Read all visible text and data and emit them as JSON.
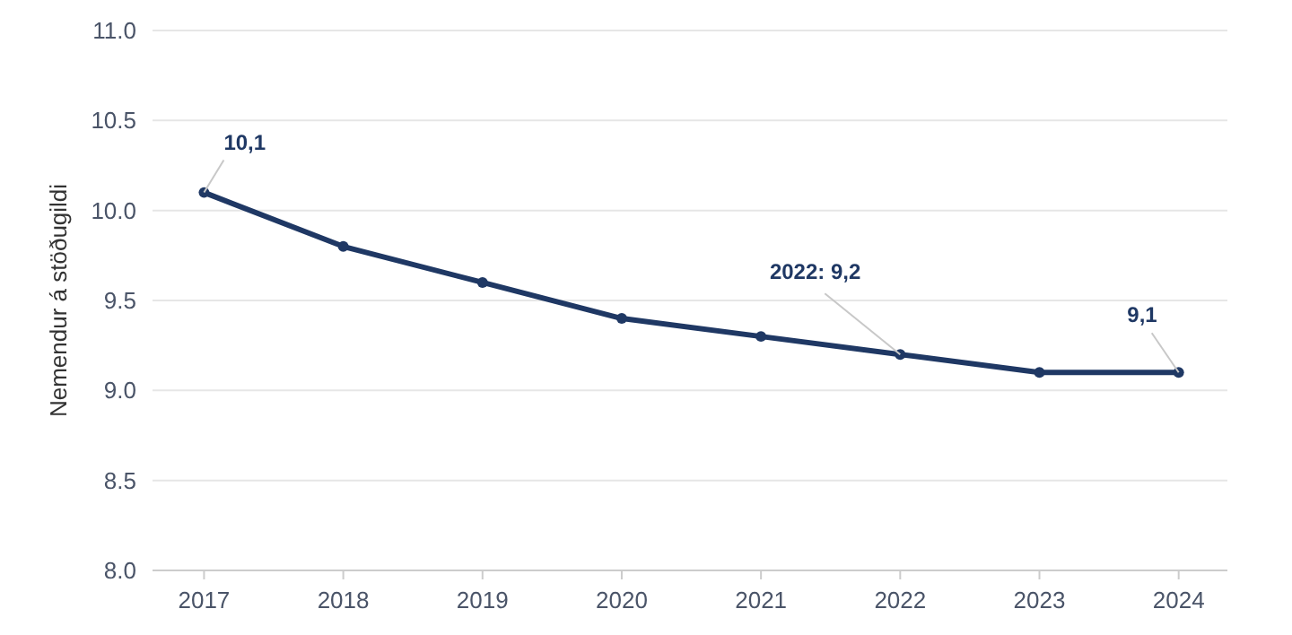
{
  "chart_data": {
    "type": "line",
    "ylabel": "Nemendur á stöðugildi",
    "x": [
      2017,
      2018,
      2019,
      2020,
      2021,
      2022,
      2023,
      2024
    ],
    "series": [
      {
        "color": "#1f3864",
        "values": [
          10.1,
          9.8,
          9.6,
          9.4,
          9.3,
          9.2,
          9.1,
          9.1
        ]
      }
    ],
    "xlim": [
      2016.63,
      2024.35
    ],
    "xticks": [
      2017,
      2018,
      2019,
      2020,
      2021,
      2022,
      2023,
      2024
    ],
    "ylim": [
      8,
      11
    ],
    "yticks": [
      {
        "value": 8,
        "label": "8.0"
      },
      {
        "value": 8.5,
        "label": "8.5"
      },
      {
        "value": 9,
        "label": "9.0"
      },
      {
        "value": 9.5,
        "label": "9.5"
      },
      {
        "value": 10,
        "label": "10.0"
      },
      {
        "value": 10.5,
        "label": "10.5"
      },
      {
        "value": 11,
        "label": "11.0"
      }
    ],
    "grid": "y",
    "marker": "circle",
    "line_style": "solid",
    "annotations": [
      {
        "text": "10,1",
        "x": 2017,
        "y": 10.1
      },
      {
        "text": "2022: 9,2",
        "x": 2022,
        "y": 9.2
      },
      {
        "text": "9,1",
        "x": 2024,
        "y": 9.1
      }
    ]
  }
}
